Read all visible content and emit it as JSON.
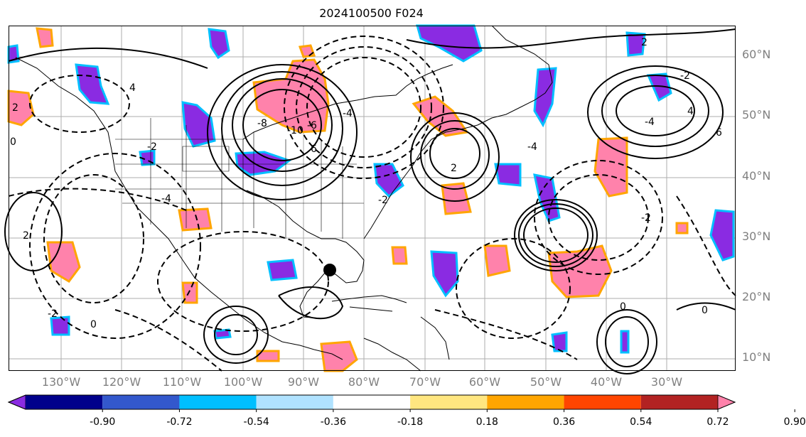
{
  "title": "2024100500 F024",
  "map": {
    "lat_labels": [
      "60°N",
      "50°N",
      "40°N",
      "30°N",
      "20°N",
      "10°N"
    ],
    "lon_labels": [
      "130°W",
      "120°W",
      "110°W",
      "100°W",
      "90°W",
      "80°W",
      "70°W",
      "60°W",
      "50°W",
      "40°W",
      "30°W"
    ],
    "contour_labels": [
      "4",
      "2",
      "0",
      "-2",
      "-4",
      "-6",
      "-8",
      "-10",
      "6",
      "-2",
      "2",
      "-4",
      "4",
      "6",
      "-4",
      "-2",
      "0",
      "2",
      "-2",
      "0",
      "2",
      "-2",
      "-4",
      "0"
    ],
    "colors": {
      "negative_strong": "#8a2be2",
      "negative_edge": "#00bfff",
      "positive_strong": "#ff82ab",
      "positive_edge": "#ffa500",
      "contour": "#000000",
      "coast": "#000000",
      "grid": "#999999",
      "marker": "#000000"
    }
  },
  "colorbar": {
    "levels": [
      "-0.90",
      "-0.72",
      "-0.54",
      "-0.36",
      "-0.18",
      "0.18",
      "0.36",
      "0.54",
      "0.72",
      "0.90"
    ],
    "colors": [
      "#8a2be2",
      "#00008b",
      "#3358cc",
      "#00bfff",
      "#b0e2ff",
      "#ffffff",
      "#ffe680",
      "#ffa500",
      "#ff4500",
      "#b22222",
      "#ff82ab"
    ]
  }
}
